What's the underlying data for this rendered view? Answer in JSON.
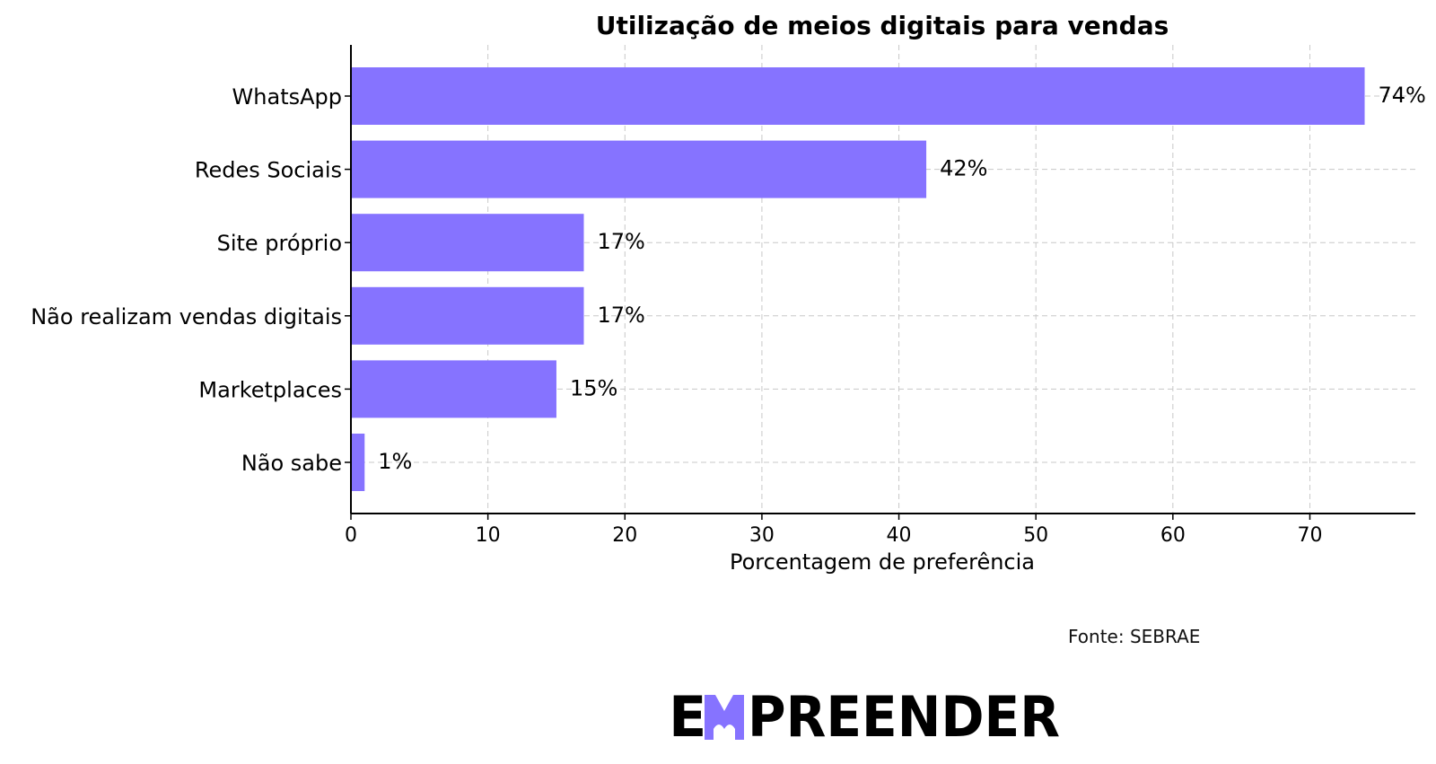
{
  "chart_data": {
    "type": "bar",
    "orientation": "horizontal",
    "title": "Utilização de meios digitais para vendas",
    "xlabel": "Porcentagem de preferência",
    "ylabel": "",
    "categories": [
      "WhatsApp",
      "Redes Sociais",
      "Site próprio",
      "Não realizam vendas digitais",
      "Marketplaces",
      "Não sabe"
    ],
    "values": [
      74,
      42,
      17,
      17,
      15,
      1
    ],
    "data_labels": [
      "74%",
      "42%",
      "17%",
      "17%",
      "15%",
      "1%"
    ],
    "xlim": [
      0,
      77.7
    ],
    "xticks": [
      0,
      10,
      20,
      30,
      40,
      50,
      60,
      70
    ],
    "grid": true,
    "bar_color": "#8673FF"
  },
  "source": "Fonte: SEBRAE",
  "logo": {
    "text": "EMPREENDER",
    "accent_color": "#8673FF"
  }
}
